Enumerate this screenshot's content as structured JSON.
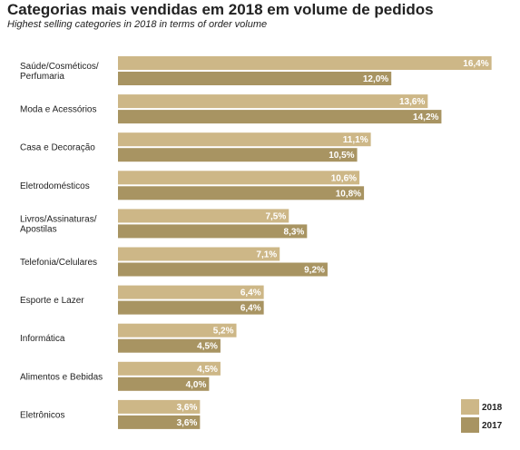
{
  "header": {
    "title": "Categorias mais vendidas em 2018 em volume de pedidos",
    "subtitle": "Highest selling categories in 2018 in terms of order volume"
  },
  "colors": {
    "2018": "#cdb787",
    "2017": "#a89462",
    "text": "#222222"
  },
  "chart_data": {
    "type": "bar",
    "orientation": "horizontal",
    "title": "Categorias mais vendidas em 2018 em volume de pedidos",
    "subtitle": "Highest selling categories in 2018 in terms of order volume",
    "categories": [
      [
        "Saúde/Cosméticos/",
        "Perfumaria"
      ],
      [
        "Moda e Acessórios"
      ],
      [
        "Casa e Decoração"
      ],
      [
        "Eletrodomésticos"
      ],
      [
        "Livros/Assinaturas/",
        "Apostilas"
      ],
      [
        "Telefonia/Celulares"
      ],
      [
        "Esporte e Lazer"
      ],
      [
        "Informática"
      ],
      [
        "Alimentos e Bebidas"
      ],
      [
        "Eletrônicos"
      ]
    ],
    "series": [
      {
        "name": "2018",
        "values": [
          16.4,
          13.6,
          11.1,
          10.6,
          7.5,
          7.1,
          6.4,
          5.2,
          4.5,
          3.6
        ],
        "labels": [
          "16,4%",
          "13,6%",
          "11,1%",
          "10,6%",
          "7,5%",
          "7,1%",
          "6,4%",
          "5,2%",
          "4,5%",
          "3,6%"
        ]
      },
      {
        "name": "2017",
        "values": [
          12.0,
          14.2,
          10.5,
          10.8,
          8.3,
          9.2,
          6.4,
          4.5,
          4.0,
          3.6
        ],
        "labels": [
          "12,0%",
          "14,2%",
          "10,5%",
          "10,8%",
          "8,3%",
          "9,2%",
          "6,4%",
          "4,5%",
          "4,0%",
          "3,6%"
        ]
      }
    ],
    "xlim": [
      0,
      16.4
    ],
    "grid": false,
    "legend": "bottom-right"
  }
}
